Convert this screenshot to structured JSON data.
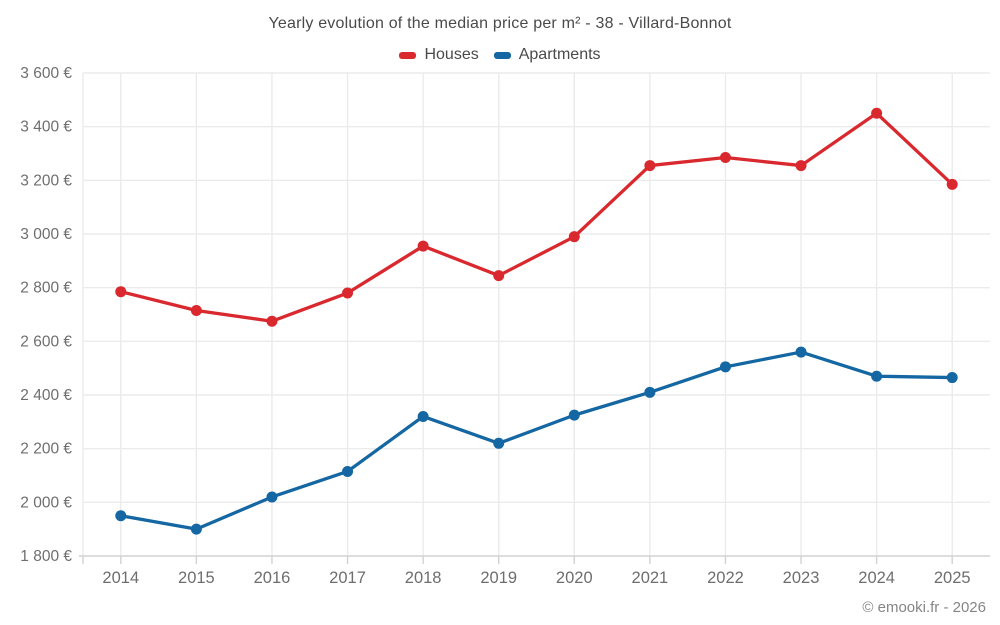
{
  "chart_data": {
    "type": "line",
    "title": "Yearly evolution of the median price per m² - 38 - Villard-Bonnot",
    "categories": [
      "2014",
      "2015",
      "2016",
      "2017",
      "2018",
      "2019",
      "2020",
      "2021",
      "2022",
      "2023",
      "2024",
      "2025"
    ],
    "series": [
      {
        "name": "Houses",
        "color": "#d9292e",
        "values": [
          2785,
          2715,
          2675,
          2780,
          2955,
          2845,
          2990,
          3255,
          3285,
          3255,
          3450,
          3185
        ]
      },
      {
        "name": "Apartments",
        "color": "#1467a2",
        "values": [
          1950,
          1900,
          2020,
          2115,
          2320,
          2220,
          2325,
          2410,
          2505,
          2560,
          2470,
          2465
        ]
      }
    ],
    "ylim": [
      1800,
      3600
    ],
    "y_tick_step": 200,
    "y_tick_format": "{value} €",
    "xlabel": "",
    "ylabel": "",
    "grid": true,
    "legend_position": "top"
  },
  "footer": {
    "credit": "© emooki.fr - 2026"
  },
  "colors": {
    "houses": "#d9292e",
    "apartments": "#1467a2",
    "grid": "#ebebeb",
    "axis_line": "#d2d2d2",
    "axis_text": "#6e6e6e",
    "title_text": "#4a4a4a",
    "footer_text": "#858585",
    "background": "#ffffff"
  }
}
